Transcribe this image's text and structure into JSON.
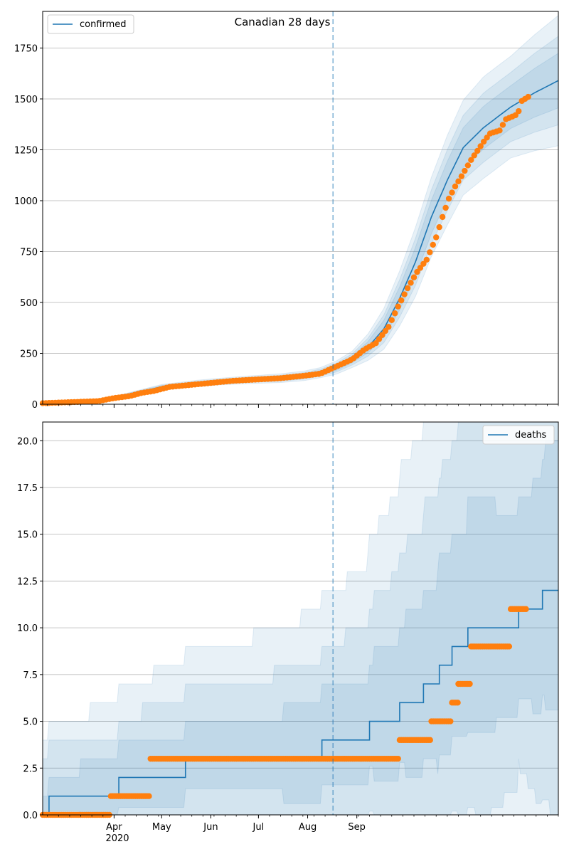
{
  "chart_data": [
    {
      "type": "line",
      "title": "Canadian 28 days",
      "series": [
        {
          "name": "confirmed",
          "kind": "median-line",
          "color": "#1f77b4"
        },
        {
          "name": "",
          "kind": "observed-points",
          "color": "#ff7f0e"
        }
      ],
      "legend": {
        "entries": [
          "confirmed"
        ],
        "placement": "top-left"
      },
      "ylim": [
        0,
        1930
      ],
      "y_ticks": [
        0,
        250,
        500,
        750,
        1000,
        1250,
        1500,
        1750
      ],
      "y_tick_labels": [
        "0",
        "250",
        "500",
        "750",
        "1000",
        "1250",
        "1500",
        "1750"
      ],
      "grid_y": true,
      "forecast_start": "2020-08-16",
      "median": [
        [
          0,
          5
        ],
        [
          20,
          8
        ],
        [
          35,
          15
        ],
        [
          55,
          50
        ],
        [
          75,
          85
        ],
        [
          100,
          105
        ],
        [
          125,
          118
        ],
        [
          150,
          128
        ],
        [
          165,
          140
        ],
        [
          175,
          155
        ],
        [
          185,
          180
        ],
        [
          195,
          220
        ],
        [
          205,
          280
        ],
        [
          215,
          370
        ],
        [
          225,
          520
        ],
        [
          235,
          700
        ],
        [
          245,
          920
        ],
        [
          255,
          1100
        ],
        [
          265,
          1260
        ],
        [
          278,
          1360
        ],
        [
          295,
          1460
        ],
        [
          310,
          1530
        ],
        [
          320,
          1570
        ],
        [
          325,
          1590
        ]
      ],
      "band_offsets": [
        [
          0,
          0
        ],
        [
          35,
          4
        ],
        [
          75,
          12
        ],
        [
          125,
          18
        ],
        [
          175,
          25
        ],
        [
          195,
          40
        ],
        [
          205,
          65
        ],
        [
          215,
          100
        ],
        [
          235,
          170
        ],
        [
          255,
          220
        ],
        [
          278,
          250
        ],
        [
          295,
          250
        ],
        [
          325,
          320
        ]
      ],
      "band_levels": [
        1.0,
        0.68,
        0.42
      ],
      "observed": [
        [
          0,
          5
        ],
        [
          35,
          15
        ],
        [
          45,
          30
        ],
        [
          55,
          40
        ],
        [
          62,
          55
        ],
        [
          70,
          65
        ],
        [
          80,
          85
        ],
        [
          100,
          100
        ],
        [
          120,
          115
        ],
        [
          150,
          128
        ],
        [
          165,
          140
        ],
        [
          175,
          150
        ],
        [
          185,
          185
        ],
        [
          195,
          220
        ],
        [
          203,
          270
        ],
        [
          210,
          300
        ],
        [
          218,
          380
        ],
        [
          224,
          480
        ],
        [
          230,
          570
        ],
        [
          236,
          650
        ],
        [
          242,
          710
        ],
        [
          248,
          820
        ],
        [
          252,
          920
        ],
        [
          256,
          1010
        ],
        [
          260,
          1070
        ],
        [
          264,
          1120
        ],
        [
          270,
          1200
        ],
        [
          278,
          1290
        ],
        [
          282,
          1330
        ],
        [
          288,
          1345
        ],
        [
          292,
          1400
        ],
        [
          298,
          1420
        ],
        [
          300,
          1440
        ],
        [
          302,
          1490
        ],
        [
          304,
          1500
        ],
        [
          306,
          1510
        ]
      ]
    },
    {
      "type": "line",
      "title": "",
      "series": [
        {
          "name": "deaths",
          "kind": "median-line",
          "color": "#1f77b4"
        },
        {
          "name": "",
          "kind": "observed-points",
          "color": "#ff7f0e"
        }
      ],
      "legend": {
        "entries": [
          "deaths"
        ],
        "placement": "top-right"
      },
      "ylim": [
        0,
        21
      ],
      "y_ticks": [
        0,
        2.5,
        5,
        7.5,
        10,
        12.5,
        15,
        17.5,
        20
      ],
      "y_tick_labels": [
        "0.0",
        "2.5",
        "5.0",
        "7.5",
        "10.0",
        "12.5",
        "15.0",
        "17.5",
        "20.0"
      ],
      "grid_y": true,
      "forecast_start": "2020-08-16",
      "x_ticks": [
        {
          "day": 45,
          "label": "Apr"
        },
        {
          "day": 75,
          "label": "May"
        },
        {
          "day": 106,
          "label": "Jun"
        },
        {
          "day": 136,
          "label": "Jul"
        },
        {
          "day": 167,
          "label": "Aug"
        },
        {
          "day": 198,
          "label": "Sep"
        }
      ],
      "x_sublabel": "2020",
      "median_steps": [
        [
          0,
          0
        ],
        [
          4,
          1
        ],
        [
          48,
          2
        ],
        [
          90,
          3
        ],
        [
          176,
          4
        ],
        [
          206,
          5
        ],
        [
          225,
          6
        ],
        [
          240,
          7
        ],
        [
          250,
          8
        ],
        [
          258,
          9
        ],
        [
          268,
          10
        ],
        [
          278,
          10
        ],
        [
          285,
          10
        ],
        [
          300,
          11
        ],
        [
          315,
          12
        ],
        [
          325,
          12
        ]
      ],
      "observed_runs": [
        [
          0,
          43,
          0
        ],
        [
          43,
          68,
          1
        ],
        [
          68,
          225,
          3
        ],
        [
          225,
          245,
          4
        ],
        [
          245,
          258,
          5
        ],
        [
          258,
          262,
          6
        ],
        [
          262,
          270,
          7
        ],
        [
          270,
          295,
          9
        ],
        [
          295,
          305,
          11
        ]
      ]
    }
  ]
}
